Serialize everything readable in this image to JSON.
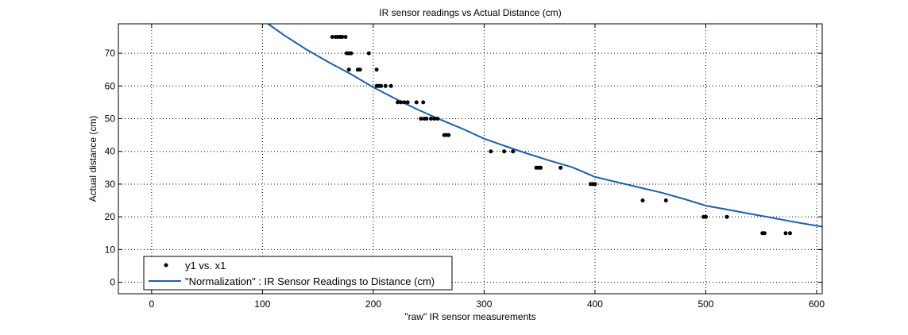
{
  "chart_data": {
    "type": "scatter",
    "title": "IR sensor readings vs Actual Distance (cm)",
    "xlabel": "\"raw\" IR sensor measurements",
    "ylabel": "Actual distance (cm)",
    "xlim": [
      -30,
      605
    ],
    "ylim": [
      -3.5,
      79
    ],
    "xticks": [
      0,
      100,
      200,
      300,
      400,
      500,
      600
    ],
    "yticks": [
      0,
      10,
      20,
      30,
      40,
      50,
      60,
      70
    ],
    "grid": true,
    "grid_style": "dotted",
    "legend_position": "bottom-left",
    "series": [
      {
        "name": "y1 vs. x1",
        "kind": "markers",
        "color": "#000000",
        "points": [
          [
            163,
            75
          ],
          [
            166,
            75
          ],
          [
            168,
            75
          ],
          [
            170,
            75
          ],
          [
            172,
            75
          ],
          [
            175,
            75
          ],
          [
            176,
            70
          ],
          [
            178,
            70
          ],
          [
            180,
            70
          ],
          [
            178,
            65
          ],
          [
            186,
            65
          ],
          [
            188,
            65
          ],
          [
            196,
            70
          ],
          [
            203,
            65
          ],
          [
            203,
            60
          ],
          [
            205,
            60
          ],
          [
            207,
            60
          ],
          [
            211,
            60
          ],
          [
            216,
            60
          ],
          [
            222,
            55
          ],
          [
            225,
            55
          ],
          [
            228,
            55
          ],
          [
            231,
            55
          ],
          [
            239,
            55
          ],
          [
            245,
            55
          ],
          [
            243,
            50
          ],
          [
            246,
            50
          ],
          [
            248,
            50
          ],
          [
            252,
            50
          ],
          [
            255,
            50
          ],
          [
            258,
            50
          ],
          [
            264,
            45
          ],
          [
            266,
            45
          ],
          [
            268,
            45
          ],
          [
            306,
            40
          ],
          [
            318,
            40
          ],
          [
            326,
            40
          ],
          [
            347,
            35
          ],
          [
            349,
            35
          ],
          [
            351,
            35
          ],
          [
            369,
            35
          ],
          [
            396,
            30
          ],
          [
            398,
            30
          ],
          [
            400,
            30
          ],
          [
            443,
            25
          ],
          [
            464,
            25
          ],
          [
            498,
            20
          ],
          [
            500,
            20
          ],
          [
            519,
            20
          ],
          [
            551,
            15
          ],
          [
            553,
            15
          ],
          [
            572,
            15
          ],
          [
            576,
            15
          ]
        ]
      },
      {
        "name": "\"Normalization\" : IR Sensor Readings to Distance (cm)",
        "kind": "line",
        "color": "#1f5fa8",
        "points": [
          [
            105,
            79.0
          ],
          [
            120,
            75.4
          ],
          [
            140,
            71.1
          ],
          [
            160,
            67.2
          ],
          [
            180,
            63.6
          ],
          [
            200,
            59.6
          ],
          [
            220,
            56.1
          ],
          [
            240,
            52.8
          ],
          [
            260,
            49.8
          ],
          [
            280,
            47.0
          ],
          [
            300,
            43.9
          ],
          [
            320,
            41.5
          ],
          [
            340,
            39.2
          ],
          [
            360,
            37.1
          ],
          [
            380,
            35.1
          ],
          [
            400,
            32.2
          ],
          [
            420,
            30.6
          ],
          [
            440,
            29.0
          ],
          [
            460,
            27.4
          ],
          [
            480,
            25.5
          ],
          [
            500,
            23.4
          ],
          [
            520,
            22.2
          ],
          [
            540,
            20.9
          ],
          [
            560,
            19.7
          ],
          [
            580,
            18.4
          ],
          [
            605,
            17.0
          ]
        ]
      }
    ]
  }
}
